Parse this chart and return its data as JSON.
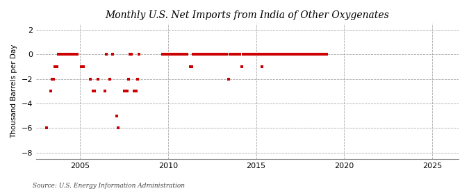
{
  "title": "Monthly U.S. Net Imports from India of Other Oxygenates",
  "ylabel": "Thousand Barrels per Day",
  "source": "Source: U.S. Energy Information Administration",
  "background_color": "#ffffff",
  "plot_bg_color": "#ffffff",
  "grid_color": "#aaaaaa",
  "marker_color": "#cc0000",
  "xlim": [
    2002.5,
    2026.5
  ],
  "ylim": [
    -8.5,
    2.5
  ],
  "yticks": [
    -8,
    -6,
    -4,
    -2,
    0,
    2
  ],
  "xticks": [
    2005,
    2010,
    2015,
    2020,
    2025
  ],
  "data_points": [
    [
      2003.08,
      -6.0
    ],
    [
      2003.33,
      -3.0
    ],
    [
      2003.42,
      -2.0
    ],
    [
      2003.5,
      -2.0
    ],
    [
      2003.58,
      -1.0
    ],
    [
      2003.67,
      -1.0
    ],
    [
      2003.75,
      0.0
    ],
    [
      2003.83,
      0.0
    ],
    [
      2003.92,
      0.0
    ],
    [
      2004.0,
      0.0
    ],
    [
      2004.08,
      0.0
    ],
    [
      2004.17,
      0.0
    ],
    [
      2004.25,
      0.0
    ],
    [
      2004.33,
      0.0
    ],
    [
      2004.42,
      0.0
    ],
    [
      2004.5,
      0.0
    ],
    [
      2004.58,
      0.0
    ],
    [
      2004.67,
      0.0
    ],
    [
      2004.75,
      0.0
    ],
    [
      2004.83,
      0.0
    ],
    [
      2005.08,
      -1.0
    ],
    [
      2005.17,
      -1.0
    ],
    [
      2005.58,
      -2.0
    ],
    [
      2005.75,
      -3.0
    ],
    [
      2005.83,
      -3.0
    ],
    [
      2006.0,
      -2.0
    ],
    [
      2006.42,
      -3.0
    ],
    [
      2006.5,
      0.0
    ],
    [
      2006.67,
      -2.0
    ],
    [
      2006.83,
      0.0
    ],
    [
      2007.08,
      -5.0
    ],
    [
      2007.17,
      -6.0
    ],
    [
      2007.5,
      -3.0
    ],
    [
      2007.58,
      -3.0
    ],
    [
      2007.67,
      -3.0
    ],
    [
      2007.75,
      -2.0
    ],
    [
      2007.83,
      0.0
    ],
    [
      2007.92,
      0.0
    ],
    [
      2008.08,
      -3.0
    ],
    [
      2008.17,
      -3.0
    ],
    [
      2008.25,
      -2.0
    ],
    [
      2008.33,
      0.0
    ],
    [
      2009.67,
      0.0
    ],
    [
      2009.75,
      0.0
    ],
    [
      2009.83,
      0.0
    ],
    [
      2009.92,
      0.0
    ],
    [
      2010.0,
      0.0
    ],
    [
      2010.08,
      0.0
    ],
    [
      2010.17,
      0.0
    ],
    [
      2010.25,
      0.0
    ],
    [
      2010.33,
      0.0
    ],
    [
      2010.42,
      0.0
    ],
    [
      2010.5,
      0.0
    ],
    [
      2010.58,
      0.0
    ],
    [
      2010.67,
      0.0
    ],
    [
      2010.75,
      0.0
    ],
    [
      2010.83,
      0.0
    ],
    [
      2010.92,
      0.0
    ],
    [
      2011.0,
      0.0
    ],
    [
      2011.08,
      0.0
    ],
    [
      2011.25,
      -1.0
    ],
    [
      2011.33,
      -1.0
    ],
    [
      2011.42,
      0.0
    ],
    [
      2011.5,
      0.0
    ],
    [
      2011.58,
      0.0
    ],
    [
      2011.67,
      0.0
    ],
    [
      2011.75,
      0.0
    ],
    [
      2011.83,
      0.0
    ],
    [
      2011.92,
      0.0
    ],
    [
      2012.0,
      0.0
    ],
    [
      2012.08,
      0.0
    ],
    [
      2012.17,
      0.0
    ],
    [
      2012.25,
      0.0
    ],
    [
      2012.33,
      0.0
    ],
    [
      2012.42,
      0.0
    ],
    [
      2012.5,
      0.0
    ],
    [
      2012.58,
      0.0
    ],
    [
      2012.67,
      0.0
    ],
    [
      2012.75,
      0.0
    ],
    [
      2012.83,
      0.0
    ],
    [
      2012.92,
      0.0
    ],
    [
      2013.0,
      0.0
    ],
    [
      2013.08,
      0.0
    ],
    [
      2013.17,
      0.0
    ],
    [
      2013.25,
      0.0
    ],
    [
      2013.33,
      0.0
    ],
    [
      2013.42,
      -2.0
    ],
    [
      2013.5,
      0.0
    ],
    [
      2013.58,
      0.0
    ],
    [
      2013.67,
      0.0
    ],
    [
      2013.75,
      0.0
    ],
    [
      2013.83,
      0.0
    ],
    [
      2013.92,
      0.0
    ],
    [
      2014.0,
      0.0
    ],
    [
      2014.08,
      0.0
    ],
    [
      2014.17,
      -1.0
    ],
    [
      2014.25,
      0.0
    ],
    [
      2014.33,
      0.0
    ],
    [
      2014.42,
      0.0
    ],
    [
      2014.5,
      0.0
    ],
    [
      2014.58,
      0.0
    ],
    [
      2014.67,
      0.0
    ],
    [
      2014.75,
      0.0
    ],
    [
      2014.83,
      0.0
    ],
    [
      2014.92,
      0.0
    ],
    [
      2015.0,
      0.0
    ],
    [
      2015.08,
      0.0
    ],
    [
      2015.17,
      0.0
    ],
    [
      2015.25,
      0.0
    ],
    [
      2015.33,
      -1.0
    ],
    [
      2015.42,
      0.0
    ],
    [
      2015.5,
      0.0
    ],
    [
      2015.58,
      0.0
    ],
    [
      2015.67,
      0.0
    ],
    [
      2015.75,
      0.0
    ],
    [
      2015.83,
      0.0
    ],
    [
      2015.92,
      0.0
    ],
    [
      2016.0,
      0.0
    ],
    [
      2016.08,
      0.0
    ],
    [
      2016.17,
      0.0
    ],
    [
      2016.25,
      0.0
    ],
    [
      2016.33,
      0.0
    ],
    [
      2016.42,
      0.0
    ],
    [
      2016.5,
      0.0
    ],
    [
      2016.58,
      0.0
    ],
    [
      2016.67,
      0.0
    ],
    [
      2016.75,
      0.0
    ],
    [
      2016.83,
      0.0
    ],
    [
      2016.92,
      0.0
    ],
    [
      2017.0,
      0.0
    ],
    [
      2017.08,
      0.0
    ],
    [
      2017.17,
      0.0
    ],
    [
      2017.25,
      0.0
    ],
    [
      2017.33,
      0.0
    ],
    [
      2017.42,
      0.0
    ],
    [
      2017.5,
      0.0
    ],
    [
      2017.58,
      0.0
    ],
    [
      2017.67,
      0.0
    ],
    [
      2017.75,
      0.0
    ],
    [
      2017.83,
      0.0
    ],
    [
      2017.92,
      0.0
    ],
    [
      2018.0,
      0.0
    ],
    [
      2018.08,
      0.0
    ],
    [
      2018.17,
      0.0
    ],
    [
      2018.25,
      0.0
    ],
    [
      2018.33,
      0.0
    ],
    [
      2018.42,
      0.0
    ],
    [
      2018.5,
      0.0
    ],
    [
      2018.58,
      0.0
    ],
    [
      2018.67,
      0.0
    ],
    [
      2018.75,
      0.0
    ],
    [
      2018.83,
      0.0
    ],
    [
      2018.92,
      0.0
    ],
    [
      2019.0,
      0.0
    ]
  ]
}
